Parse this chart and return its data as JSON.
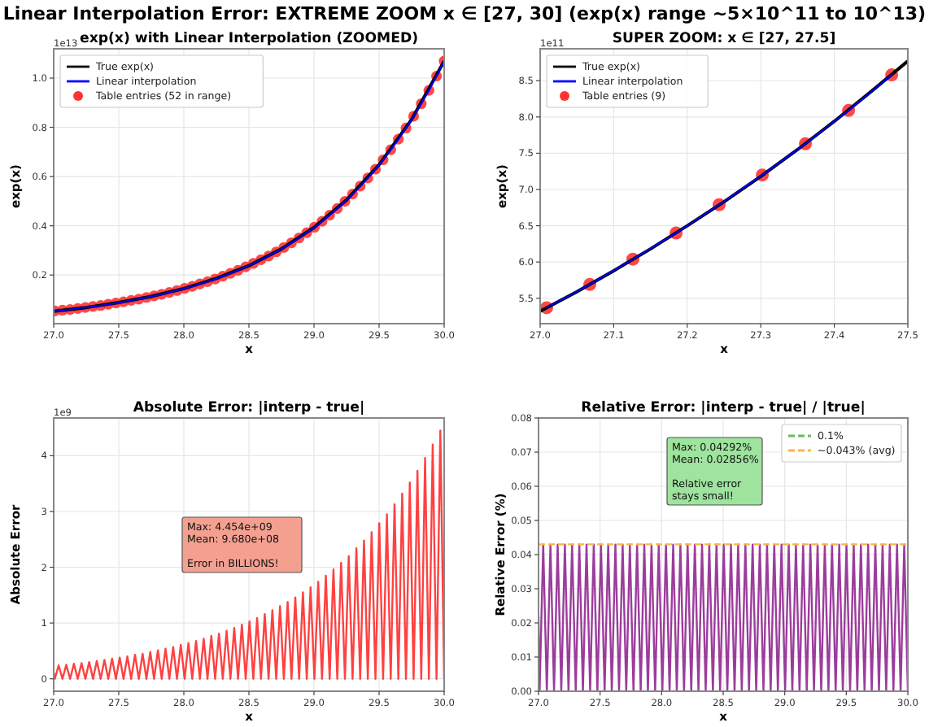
{
  "chart_data": [
    {
      "type": "line",
      "title": "Linear Interpolation Error: EXTREME ZOOM x ∈ [27, 30] (exp(x) range ~5×10^11 to 10^13)",
      "subtitle": "exp(x) with Linear Interpolation (ZOOMED)",
      "xlabel": "x",
      "ylabel": "exp(x)",
      "annotations": [
        "1e13"
      ],
      "grid": true,
      "legend": "top left",
      "xlim": [
        27,
        30
      ],
      "xticks": [
        {
          "value": 27,
          "label": "27.0"
        },
        27.5,
        {
          "value": 28,
          "label": "28.0"
        },
        28.5,
        {
          "value": 29,
          "label": "29.0"
        },
        29.5,
        {
          "value": 30,
          "label": "30.0"
        }
      ],
      "ylim": [
        0.0024,
        1.119
      ],
      "yticks": [
        0.2,
        0.4,
        0.6,
        0.8,
        {
          "value": 1,
          "label": "1.0"
        }
      ],
      "x": [
        27.0088,
        27.0675,
        27.1261,
        27.1848,
        27.2434,
        27.3021,
        27.3607,
        27.4194,
        27.478,
        27.5367,
        27.5953,
        27.654,
        27.7126,
        27.7713,
        27.8299,
        27.8886,
        27.9472,
        28.0059,
        28.0645,
        28.1232,
        28.1818,
        28.2405,
        28.2991,
        28.3578,
        28.4164,
        28.4751,
        28.5337,
        28.5924,
        28.651,
        28.7097,
        28.7683,
        28.827,
        28.8856,
        28.9443,
        29.0029,
        29.0616,
        29.1202,
        29.1789,
        29.2375,
        29.2962,
        29.3548,
        29.4135,
        29.4721,
        29.5308,
        29.5894,
        29.6481,
        29.7067,
        29.7654,
        29.824,
        29.8827,
        29.9413,
        30
      ],
      "series": [
        {
          "name": "True exp(x)",
          "color": "#000000",
          "x": [
            27,
            27.25,
            27.5,
            27.75,
            28,
            28.25,
            28.5,
            28.75,
            29,
            29.25,
            29.5,
            29.75,
            30
          ],
          "values": [
            0.053,
            0.068,
            0.088,
            0.113,
            0.145,
            0.186,
            0.238,
            0.306,
            0.393,
            0.505,
            0.648,
            0.832,
            1.069
          ]
        },
        {
          "name": "Linear interpolation",
          "color": "#0000ff",
          "values": [
            0.054,
            0.057,
            0.06,
            0.064,
            0.068,
            0.072,
            0.076,
            0.081,
            0.086,
            0.091,
            0.097,
            0.102,
            0.109,
            0.115,
            0.122,
            0.129,
            0.137,
            0.146,
            0.154,
            0.164,
            0.173,
            0.184,
            0.195,
            0.207,
            0.219,
            0.233,
            0.247,
            0.262,
            0.277,
            0.294,
            0.312,
            0.331,
            0.351,
            0.372,
            0.394,
            0.418,
            0.443,
            0.47,
            0.499,
            0.529,
            0.561,
            0.594,
            0.63,
            0.668,
            0.709,
            0.752,
            0.797,
            0.845,
            0.896,
            0.95,
            1.008,
            1.069
          ]
        },
        {
          "name": "Table entries (52 in range)",
          "type": "scatter",
          "marker": "circle",
          "color": "#ff3333",
          "values": [
            0.054,
            0.057,
            0.06,
            0.064,
            0.068,
            0.072,
            0.076,
            0.081,
            0.086,
            0.091,
            0.097,
            0.102,
            0.109,
            0.115,
            0.122,
            0.129,
            0.137,
            0.146,
            0.154,
            0.164,
            0.173,
            0.184,
            0.195,
            0.207,
            0.219,
            0.233,
            0.247,
            0.262,
            0.277,
            0.294,
            0.312,
            0.331,
            0.351,
            0.372,
            0.394,
            0.418,
            0.443,
            0.47,
            0.499,
            0.529,
            0.561,
            0.594,
            0.63,
            0.668,
            0.709,
            0.752,
            0.797,
            0.845,
            0.896,
            0.95,
            1.008,
            1.069
          ]
        }
      ]
    },
    {
      "type": "line",
      "title": "SUPER ZOOM: x ∈ [27, 27.5]",
      "xlabel": "x",
      "ylabel": "exp(x)",
      "annotations": [
        "1e11"
      ],
      "grid": true,
      "legend": "top left",
      "xlim": [
        27,
        27.5
      ],
      "xticks": [
        {
          "value": 27,
          "label": "27.0"
        },
        27.1,
        27.2,
        27.3,
        27.4,
        27.5
      ],
      "ylim": [
        5.15,
        8.94
      ],
      "yticks": [
        5.5,
        {
          "value": 6,
          "label": "6.0"
        },
        6.5,
        {
          "value": 7,
          "label": "7.0"
        },
        7.5,
        {
          "value": 8,
          "label": "8.0"
        },
        8.5
      ],
      "x": [
        27.0088,
        27.0675,
        27.1261,
        27.1848,
        27.2434,
        27.3021,
        27.3607,
        27.4194,
        27.478
      ],
      "series": [
        {
          "name": "True exp(x)",
          "color": "#000000",
          "x": [
            27,
            27.05,
            27.1,
            27.15,
            27.2,
            27.25,
            27.3,
            27.35,
            27.4,
            27.45,
            27.5
          ],
          "values": [
            5.32,
            5.59,
            5.88,
            6.18,
            6.5,
            6.83,
            7.18,
            7.55,
            7.94,
            8.35,
            8.77
          ]
        },
        {
          "name": "Linear interpolation",
          "color": "#0000ff",
          "values": [
            5.37,
            5.69,
            6.04,
            6.4,
            6.79,
            7.2,
            7.63,
            8.09,
            8.58
          ]
        },
        {
          "name": "Table entries (9)",
          "type": "scatter",
          "marker": "circle",
          "color": "#ff3333",
          "values": [
            5.37,
            5.69,
            6.04,
            6.4,
            6.79,
            7.2,
            7.63,
            8.09,
            8.58
          ]
        }
      ]
    },
    {
      "type": "line",
      "title": "Absolute Error: |interp - true|",
      "xlabel": "x",
      "ylabel": "Absolute Error",
      "annotations": [
        "1e9",
        "Max: 4.454e+09\nMean: 9.680e+08\n\nError in BILLIONS!"
      ],
      "grid": true,
      "xlim": [
        27,
        30
      ],
      "xticks": [
        {
          "value": 27,
          "label": "27.0"
        },
        27.5,
        {
          "value": 28,
          "label": "28.0"
        },
        28.5,
        {
          "value": 29,
          "label": "29.0"
        },
        29.5,
        {
          "value": 30,
          "label": "30.0"
        }
      ],
      "ylim": [
        -0.223,
        4.677
      ],
      "yticks": [
        0,
        1,
        2,
        3,
        4
      ],
      "x": [
        27,
        27.0088,
        27.0381,
        27.0675,
        27.0968,
        27.1261,
        27.1554,
        27.1848,
        27.2141,
        27.2434,
        27.2727,
        27.3021,
        27.3314,
        27.3607,
        27.39,
        27.4194,
        27.4487,
        27.478,
        27.5073,
        27.5367,
        27.566,
        27.5953,
        27.6246,
        27.654,
        27.6833,
        27.7126,
        27.7419,
        27.7713,
        27.8006,
        27.8299,
        27.8592,
        27.8886,
        27.9179,
        27.9472,
        27.9765,
        28.0059,
        28.0352,
        28.0645,
        28.0938,
        28.1232,
        28.1525,
        28.1818,
        28.2111,
        28.2405,
        28.2698,
        28.2991,
        28.3284,
        28.3578,
        28.3871,
        28.4164,
        28.4457,
        28.4751,
        28.5044,
        28.5337,
        28.563,
        28.5924,
        28.6217,
        28.651,
        28.6803,
        28.7097,
        28.739,
        28.7683,
        28.7976,
        28.827,
        28.8563,
        28.8856,
        28.9149,
        28.9443,
        28.9736,
        29.0029,
        29.0322,
        29.0616,
        29.0909,
        29.1202,
        29.1495,
        29.1789,
        29.2082,
        29.2375,
        29.2668,
        29.2962,
        29.3255,
        29.3548,
        29.3841,
        29.4135,
        29.4428,
        29.4721,
        29.5014,
        29.5308,
        29.5601,
        29.5894,
        29.6187,
        29.6481,
        29.6774,
        29.7067,
        29.736,
        29.7654,
        29.7947,
        29.824,
        29.8533,
        29.8827,
        29.912,
        29.9413,
        29.9706,
        30
      ],
      "series": [
        {
          "color": "#ff2020",
          "values": [
            0.11,
            0,
            0.24,
            0,
            0.25,
            0,
            0.27,
            0,
            0.28,
            0,
            0.3,
            0,
            0.32,
            0,
            0.34,
            0,
            0.36,
            0,
            0.38,
            0,
            0.4,
            0,
            0.43,
            0,
            0.45,
            0,
            0.48,
            0,
            0.51,
            0,
            0.54,
            0,
            0.57,
            0,
            0.61,
            0,
            0.64,
            0,
            0.68,
            0,
            0.72,
            0,
            0.77,
            0,
            0.81,
            0,
            0.86,
            0,
            0.91,
            0,
            0.97,
            0,
            1.03,
            0,
            1.09,
            0,
            1.16,
            0,
            1.23,
            0,
            1.3,
            0,
            1.38,
            0,
            1.46,
            0,
            1.55,
            0,
            1.64,
            0,
            1.74,
            0,
            1.85,
            0,
            1.96,
            0,
            2.08,
            0,
            2.2,
            0,
            2.34,
            0,
            2.48,
            0,
            2.63,
            0,
            2.79,
            0,
            2.95,
            0,
            3.13,
            0,
            3.32,
            0,
            3.52,
            0,
            3.73,
            0,
            3.96,
            0,
            4.2,
            0,
            4.45,
            0
          ]
        }
      ]
    },
    {
      "type": "line",
      "title": "Relative Error: |interp - true| / |true|",
      "xlabel": "x",
      "ylabel": "Relative Error (%)",
      "annotations": [
        "Max: 0.04292%\nMean: 0.02856%\n\nRelative error\nstays small!"
      ],
      "grid": true,
      "legend": "top right",
      "xlim": [
        27,
        30
      ],
      "xticks": [
        {
          "value": 27,
          "label": "27.0"
        },
        27.5,
        {
          "value": 28,
          "label": "28.0"
        },
        28.5,
        {
          "value": 29,
          "label": "29.0"
        },
        29.5,
        {
          "value": 30,
          "label": "30.0"
        }
      ],
      "ylim": [
        0,
        0.08
      ],
      "yticks": [
        {
          "value": 0,
          "label": "0.00"
        },
        0.01,
        0.02,
        0.03,
        0.04,
        0.05,
        0.06,
        0.07,
        0.08
      ],
      "ref_lines": [
        {
          "axis": "y",
          "value": null,
          "label": "0.1%",
          "color": "#66bb66",
          "line_style": "dashed"
        },
        {
          "axis": "y",
          "value": 0.043,
          "label": "~0.043% (avg)",
          "color": "#ffb347",
          "line_style": "dashed"
        }
      ],
      "x": [
        27,
        27.0088,
        27.0381,
        27.0675,
        27.0968,
        27.1261,
        27.1554,
        27.1848,
        27.2141,
        27.2434,
        27.2727,
        27.3021,
        27.3314,
        27.3607,
        27.39,
        27.4194,
        27.4487,
        27.478,
        27.5073,
        27.5367,
        27.566,
        27.5953,
        27.6246,
        27.654,
        27.6833,
        27.7126,
        27.7419,
        27.7713,
        27.8006,
        27.8299,
        27.8592,
        27.8886,
        27.9179,
        27.9472,
        27.9765,
        28.0059,
        28.0352,
        28.0645,
        28.0938,
        28.1232,
        28.1525,
        28.1818,
        28.2111,
        28.2405,
        28.2698,
        28.2991,
        28.3284,
        28.3578,
        28.3871,
        28.4164,
        28.4457,
        28.4751,
        28.5044,
        28.5337,
        28.563,
        28.5924,
        28.6217,
        28.651,
        28.6803,
        28.7097,
        28.739,
        28.7683,
        28.7976,
        28.827,
        28.8563,
        28.8856,
        28.9149,
        28.9443,
        28.9736,
        29.0029,
        29.0322,
        29.0616,
        29.0909,
        29.1202,
        29.1495,
        29.1789,
        29.2082,
        29.2375,
        29.2668,
        29.2962,
        29.3255,
        29.3548,
        29.3841,
        29.4135,
        29.4428,
        29.4721,
        29.5014,
        29.5308,
        29.5601,
        29.5894,
        29.6187,
        29.6481,
        29.6774,
        29.7067,
        29.736,
        29.7654,
        29.7947,
        29.824,
        29.8533,
        29.8827,
        29.912,
        29.9413,
        29.9706,
        30
      ],
      "series": [
        {
          "color": "#8b1a8b",
          "values": [
            0.022,
            0,
            0.0429,
            0,
            0.0429,
            0,
            0.0429,
            0,
            0.0429,
            0,
            0.0429,
            0,
            0.0429,
            0,
            0.0429,
            0,
            0.0429,
            0,
            0.0429,
            0,
            0.0429,
            0,
            0.0429,
            0,
            0.0429,
            0,
            0.0429,
            0,
            0.0429,
            0,
            0.0429,
            0,
            0.0429,
            0,
            0.0429,
            0,
            0.0429,
            0,
            0.0429,
            0,
            0.0429,
            0,
            0.0429,
            0,
            0.0429,
            0,
            0.0429,
            0,
            0.0429,
            0,
            0.0429,
            0,
            0.0429,
            0,
            0.0429,
            0,
            0.0429,
            0,
            0.0429,
            0,
            0.0429,
            0,
            0.0429,
            0,
            0.0429,
            0,
            0.0429,
            0,
            0.0429,
            0,
            0.0429,
            0,
            0.0429,
            0,
            0.0429,
            0,
            0.0429,
            0,
            0.0429,
            0,
            0.0429,
            0,
            0.0429,
            0,
            0.0429,
            0,
            0.0429,
            0,
            0.0429,
            0,
            0.0429,
            0,
            0.0429,
            0,
            0.0429,
            0,
            0.0429,
            0,
            0.0429,
            0,
            0.0429,
            0,
            0.0429,
            0
          ]
        }
      ]
    }
  ]
}
